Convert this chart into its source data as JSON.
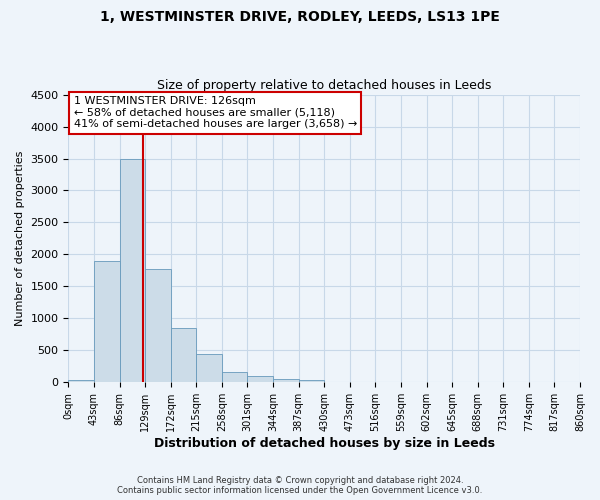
{
  "title": "1, WESTMINSTER DRIVE, RODLEY, LEEDS, LS13 1PE",
  "subtitle": "Size of property relative to detached houses in Leeds",
  "xlabel": "Distribution of detached houses by size in Leeds",
  "ylabel": "Number of detached properties",
  "bin_edges": [
    0,
    43,
    86,
    129,
    172,
    215,
    258,
    301,
    344,
    387,
    430,
    473,
    516,
    559,
    602,
    645,
    688,
    731,
    774,
    817,
    860
  ],
  "bin_labels": [
    "0sqm",
    "43sqm",
    "86sqm",
    "129sqm",
    "172sqm",
    "215sqm",
    "258sqm",
    "301sqm",
    "344sqm",
    "387sqm",
    "430sqm",
    "473sqm",
    "516sqm",
    "559sqm",
    "602sqm",
    "645sqm",
    "688sqm",
    "731sqm",
    "774sqm",
    "817sqm",
    "860sqm"
  ],
  "counts": [
    40,
    1900,
    3500,
    1780,
    850,
    450,
    165,
    100,
    55,
    30,
    10,
    0,
    0,
    0,
    0,
    0,
    0,
    0,
    0,
    0
  ],
  "bar_color": "#ccdce8",
  "bar_edge_color": "#6699bb",
  "grid_color": "#c8d8e8",
  "background_color": "#eef4fa",
  "vline_x": 126,
  "vline_color": "#cc0000",
  "annotation_line1": "1 WESTMINSTER DRIVE: 126sqm",
  "annotation_line2": "← 58% of detached houses are smaller (5,118)",
  "annotation_line3": "41% of semi-detached houses are larger (3,658) →",
  "annotation_box_color": "#ffffff",
  "annotation_box_edge": "#cc0000",
  "footer_line1": "Contains HM Land Registry data © Crown copyright and database right 2024.",
  "footer_line2": "Contains public sector information licensed under the Open Government Licence v3.0.",
  "ylim": [
    0,
    4500
  ],
  "figsize": [
    6.0,
    5.0
  ],
  "dpi": 100
}
